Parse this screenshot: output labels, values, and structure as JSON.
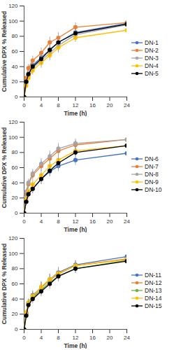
{
  "chart_data": [
    {
      "type": "line",
      "marker": "circle",
      "legend": "right",
      "grid": false,
      "xlabel": "Time (h)",
      "ylabel": "Cumulative DPX % Released",
      "x": [
        0,
        0.5,
        1,
        2,
        4,
        6,
        8,
        12,
        24
      ],
      "xlim": [
        0,
        24
      ],
      "xticks": [
        0,
        4,
        8,
        12,
        16,
        20,
        24
      ],
      "ylim": [
        0,
        120
      ],
      "yticks": [
        0,
        20,
        40,
        60,
        80,
        100,
        120
      ],
      "series": [
        {
          "name": "DN-1",
          "color": "#4472c4",
          "values": [
            0,
            20,
            30,
            42,
            52,
            62,
            72,
            85,
            97
          ],
          "errors": [
            0,
            4,
            5,
            6,
            7,
            7,
            7,
            6,
            4
          ]
        },
        {
          "name": "DN-2",
          "color": "#ed7d31",
          "values": [
            0,
            25,
            38,
            48,
            58,
            72,
            78,
            92,
            98
          ],
          "errors": [
            0,
            4,
            5,
            6,
            7,
            7,
            7,
            6,
            3
          ]
        },
        {
          "name": "DN-3",
          "color": "#a5a5a5",
          "values": [
            0,
            18,
            28,
            38,
            48,
            58,
            68,
            82,
            95
          ],
          "errors": [
            0,
            4,
            5,
            6,
            7,
            7,
            7,
            6,
            4
          ]
        },
        {
          "name": "DN-4",
          "color": "#ffc000",
          "values": [
            0,
            15,
            25,
            35,
            45,
            55,
            65,
            78,
            88
          ],
          "errors": [
            0,
            4,
            5,
            6,
            7,
            7,
            7,
            6,
            5
          ]
        },
        {
          "name": "DN-5",
          "color": "#000000",
          "values": [
            0,
            20,
            30,
            40,
            50,
            62,
            72,
            84,
            96
          ],
          "errors": [
            0,
            4,
            5,
            6,
            7,
            7,
            7,
            6,
            4
          ]
        }
      ]
    },
    {
      "type": "line",
      "marker": "circle",
      "legend": "right",
      "grid": false,
      "xlabel": "Time (h)",
      "ylabel": "Cumulative DPX % Released",
      "x": [
        0,
        0.5,
        1,
        2,
        4,
        6,
        8,
        12,
        24
      ],
      "xlim": [
        0,
        24
      ],
      "xticks": [
        0,
        4,
        8,
        12,
        16,
        20,
        24
      ],
      "ylim": [
        0,
        120
      ],
      "yticks": [
        0,
        20,
        40,
        60,
        80,
        100,
        120
      ],
      "series": [
        {
          "name": "DN-6",
          "color": "#4472c4",
          "values": [
            0,
            15,
            25,
            32,
            45,
            55,
            62,
            70,
            79
          ],
          "errors": [
            0,
            4,
            5,
            6,
            7,
            7,
            7,
            7,
            6
          ]
        },
        {
          "name": "DN-7",
          "color": "#ed7d31",
          "values": [
            0,
            25,
            38,
            50,
            62,
            72,
            82,
            90,
            97
          ],
          "errors": [
            0,
            4,
            5,
            6,
            7,
            7,
            7,
            6,
            4
          ]
        },
        {
          "name": "DN-8",
          "color": "#a5a5a5",
          "values": [
            0,
            28,
            40,
            52,
            65,
            75,
            85,
            92,
            97
          ],
          "errors": [
            0,
            4,
            5,
            6,
            7,
            7,
            7,
            6,
            4
          ]
        },
        {
          "name": "DN-9",
          "color": "#ffc000",
          "values": [
            0,
            18,
            28,
            38,
            50,
            62,
            70,
            82,
            89
          ],
          "errors": [
            0,
            4,
            5,
            6,
            7,
            7,
            7,
            6,
            5
          ]
        },
        {
          "name": "DN-10",
          "color": "#000000",
          "values": [
            0,
            15,
            25,
            32,
            45,
            56,
            66,
            80,
            89
          ],
          "errors": [
            0,
            4,
            5,
            6,
            7,
            7,
            7,
            6,
            5
          ]
        }
      ]
    },
    {
      "type": "line",
      "marker": "circle",
      "legend": "right",
      "grid": false,
      "xlabel": "Time (h)",
      "ylabel": "Cumulative DPX % Released",
      "x": [
        0,
        0.5,
        1,
        2,
        4,
        6,
        8,
        12,
        24
      ],
      "xlim": [
        0,
        24
      ],
      "xticks": [
        0,
        4,
        8,
        12,
        16,
        20,
        24
      ],
      "ylim": [
        0,
        120
      ],
      "yticks": [
        0,
        20,
        40,
        60,
        80,
        100,
        120
      ],
      "series": [
        {
          "name": "DN-11",
          "color": "#4472c4",
          "values": [
            0,
            20,
            35,
            45,
            55,
            66,
            75,
            85,
            96
          ],
          "errors": [
            0,
            4,
            5,
            6,
            7,
            7,
            7,
            6,
            4
          ]
        },
        {
          "name": "DN-12",
          "color": "#ed7d31",
          "values": [
            0,
            22,
            35,
            43,
            55,
            65,
            73,
            84,
            93
          ],
          "errors": [
            0,
            4,
            5,
            6,
            7,
            7,
            7,
            6,
            4
          ]
        },
        {
          "name": "DN-13",
          "color": "#70ad47",
          "values": [
            0,
            20,
            33,
            42,
            52,
            62,
            70,
            80,
            91
          ],
          "errors": [
            0,
            4,
            5,
            6,
            7,
            7,
            7,
            6,
            4
          ]
        },
        {
          "name": "DN-14",
          "color": "#ffc000",
          "values": [
            0,
            22,
            35,
            44,
            56,
            66,
            74,
            84,
            92
          ],
          "errors": [
            0,
            4,
            5,
            6,
            7,
            7,
            7,
            6,
            4
          ]
        },
        {
          "name": "DN-15",
          "color": "#000000",
          "values": [
            0,
            18,
            32,
            40,
            50,
            60,
            70,
            80,
            90
          ],
          "errors": [
            0,
            4,
            5,
            6,
            7,
            7,
            7,
            6,
            4
          ]
        }
      ]
    }
  ]
}
